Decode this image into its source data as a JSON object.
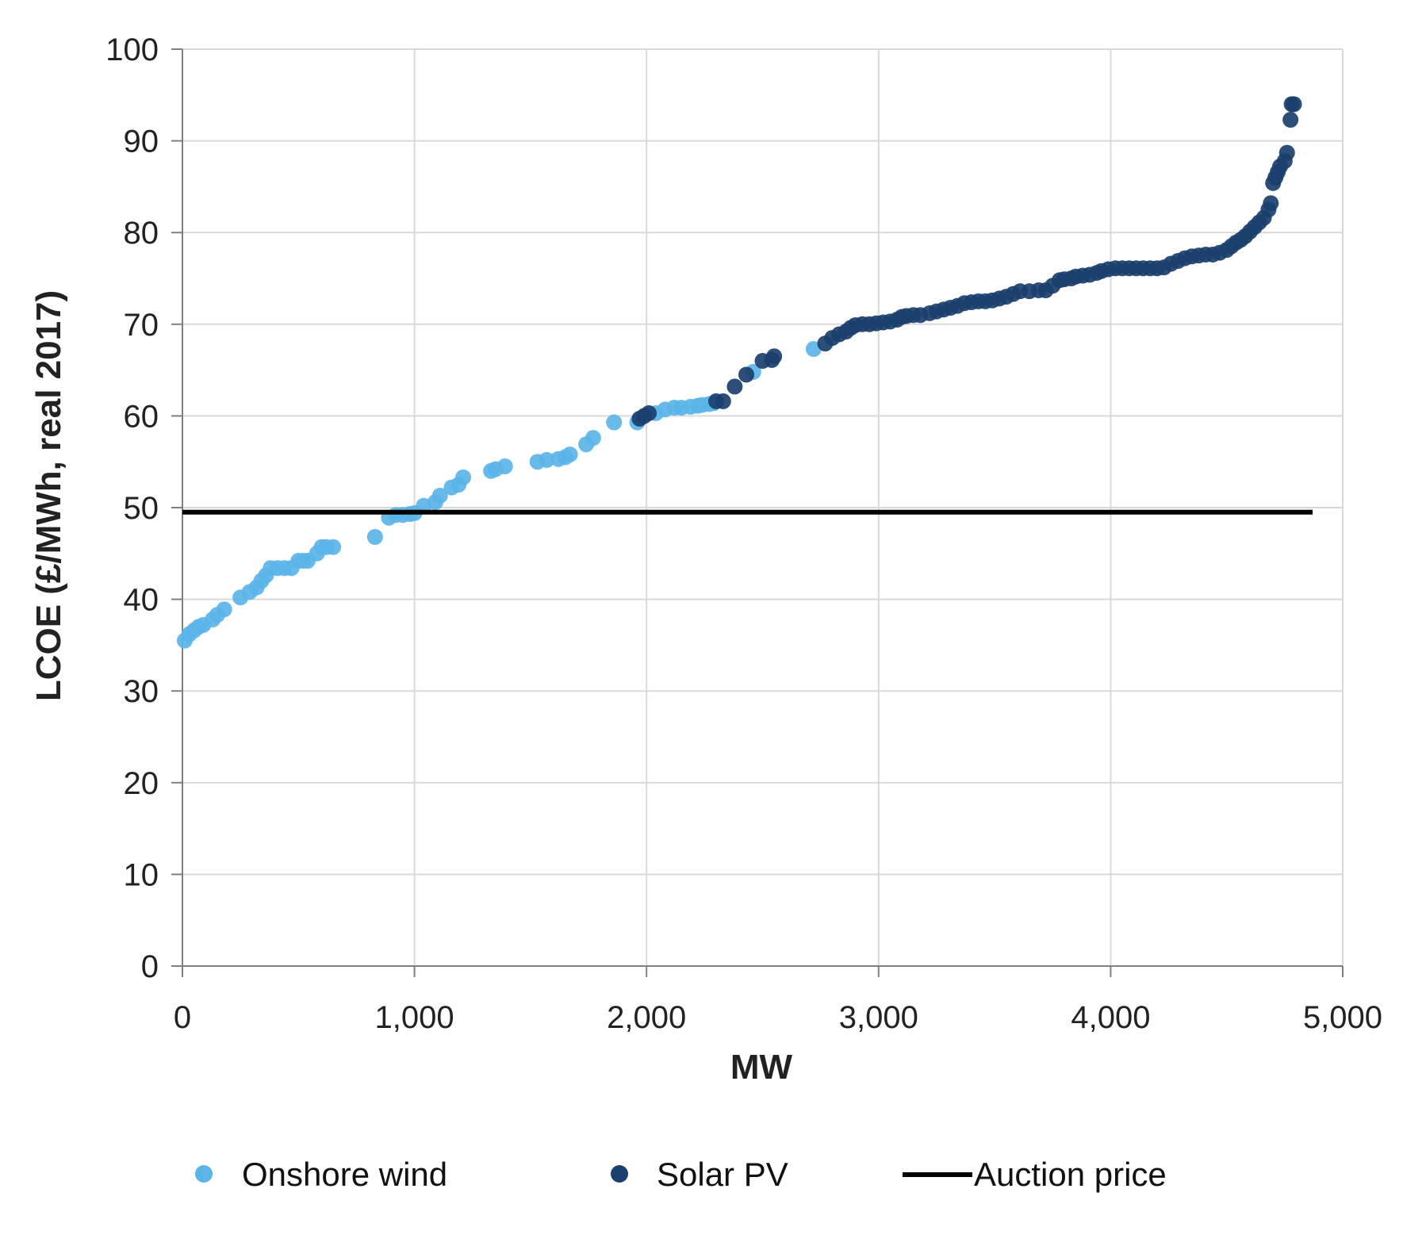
{
  "chart_data": {
    "type": "scatter",
    "title": "",
    "xlabel": "MW",
    "ylabel": "LCOE (£/MWh, real 2017)",
    "xlim": [
      0,
      5000
    ],
    "ylim": [
      0,
      100
    ],
    "xticks": [
      0,
      1000,
      2000,
      3000,
      4000,
      5000
    ],
    "xtick_labels": [
      "0",
      "1,000",
      "2,000",
      "3,000",
      "4,000",
      "5,000"
    ],
    "yticks": [
      0,
      10,
      20,
      30,
      40,
      50,
      60,
      70,
      80,
      90,
      100
    ],
    "ytick_labels": [
      "0",
      "10",
      "20",
      "30",
      "40",
      "50",
      "60",
      "70",
      "80",
      "90",
      "100"
    ],
    "grid": true,
    "legend_position": "bottom",
    "series": [
      {
        "name": "Onshore wind",
        "kind": "scatter",
        "color": "#5BB4E8",
        "points": [
          [
            10,
            35.5
          ],
          [
            30,
            36.2
          ],
          [
            50,
            36.6
          ],
          [
            70,
            37.0
          ],
          [
            90,
            37.2
          ],
          [
            130,
            37.8
          ],
          [
            150,
            38.3
          ],
          [
            180,
            38.9
          ],
          [
            250,
            40.2
          ],
          [
            290,
            40.8
          ],
          [
            320,
            41.3
          ],
          [
            340,
            42.0
          ],
          [
            360,
            42.6
          ],
          [
            380,
            43.4
          ],
          [
            410,
            43.4
          ],
          [
            440,
            43.4
          ],
          [
            470,
            43.4
          ],
          [
            500,
            44.2
          ],
          [
            520,
            44.2
          ],
          [
            540,
            44.2
          ],
          [
            580,
            45.0
          ],
          [
            600,
            45.7
          ],
          [
            620,
            45.7
          ],
          [
            650,
            45.7
          ],
          [
            830,
            46.8
          ],
          [
            890,
            48.9
          ],
          [
            920,
            49.2
          ],
          [
            950,
            49.2
          ],
          [
            980,
            49.3
          ],
          [
            1000,
            49.4
          ],
          [
            1040,
            50.2
          ],
          [
            1090,
            50.6
          ],
          [
            1110,
            51.3
          ],
          [
            1160,
            52.2
          ],
          [
            1190,
            52.5
          ],
          [
            1210,
            53.3
          ],
          [
            1330,
            54.0
          ],
          [
            1350,
            54.2
          ],
          [
            1390,
            54.5
          ],
          [
            1530,
            55.0
          ],
          [
            1570,
            55.2
          ],
          [
            1620,
            55.3
          ],
          [
            1650,
            55.5
          ],
          [
            1670,
            55.8
          ],
          [
            1740,
            56.9
          ],
          [
            1770,
            57.6
          ],
          [
            1860,
            59.3
          ],
          [
            1960,
            59.3
          ],
          [
            2040,
            60.3
          ],
          [
            2080,
            60.7
          ],
          [
            2120,
            60.9
          ],
          [
            2150,
            60.9
          ],
          [
            2190,
            61.0
          ],
          [
            2220,
            61.1
          ],
          [
            2240,
            61.2
          ],
          [
            2270,
            61.3
          ],
          [
            2290,
            61.4
          ],
          [
            2460,
            64.8
          ],
          [
            2720,
            67.3
          ]
        ]
      },
      {
        "name": "Solar PV",
        "kind": "scatter",
        "color": "#1B3F6E",
        "points": [
          [
            1970,
            59.7
          ],
          [
            1990,
            60.0
          ],
          [
            2010,
            60.3
          ],
          [
            2300,
            61.6
          ],
          [
            2330,
            61.6
          ],
          [
            2380,
            63.2
          ],
          [
            2430,
            64.5
          ],
          [
            2500,
            66.0
          ],
          [
            2540,
            66.1
          ],
          [
            2550,
            66.5
          ],
          [
            2770,
            67.9
          ],
          [
            2800,
            68.5
          ],
          [
            2830,
            68.9
          ],
          [
            2860,
            69.2
          ],
          [
            2880,
            69.6
          ],
          [
            2900,
            69.9
          ],
          [
            2930,
            70.0
          ],
          [
            2960,
            70.0
          ],
          [
            2990,
            70.1
          ],
          [
            3020,
            70.2
          ],
          [
            3050,
            70.3
          ],
          [
            3080,
            70.5
          ],
          [
            3100,
            70.8
          ],
          [
            3120,
            70.9
          ],
          [
            3150,
            71.0
          ],
          [
            3180,
            71.0
          ],
          [
            3220,
            71.2
          ],
          [
            3250,
            71.4
          ],
          [
            3280,
            71.6
          ],
          [
            3310,
            71.8
          ],
          [
            3340,
            72.0
          ],
          [
            3370,
            72.3
          ],
          [
            3400,
            72.4
          ],
          [
            3430,
            72.5
          ],
          [
            3460,
            72.5
          ],
          [
            3490,
            72.6
          ],
          [
            3520,
            72.8
          ],
          [
            3550,
            73.0
          ],
          [
            3580,
            73.3
          ],
          [
            3610,
            73.6
          ],
          [
            3650,
            73.6
          ],
          [
            3690,
            73.7
          ],
          [
            3720,
            73.7
          ],
          [
            3750,
            74.2
          ],
          [
            3780,
            74.8
          ],
          [
            3800,
            74.9
          ],
          [
            3830,
            75.0
          ],
          [
            3850,
            75.2
          ],
          [
            3880,
            75.3
          ],
          [
            3910,
            75.4
          ],
          [
            3940,
            75.6
          ],
          [
            3960,
            75.8
          ],
          [
            3990,
            76.0
          ],
          [
            4020,
            76.1
          ],
          [
            4050,
            76.1
          ],
          [
            4080,
            76.1
          ],
          [
            4110,
            76.1
          ],
          [
            4140,
            76.1
          ],
          [
            4170,
            76.1
          ],
          [
            4200,
            76.1
          ],
          [
            4230,
            76.2
          ],
          [
            4260,
            76.6
          ],
          [
            4290,
            76.9
          ],
          [
            4320,
            77.2
          ],
          [
            4350,
            77.4
          ],
          [
            4380,
            77.5
          ],
          [
            4410,
            77.6
          ],
          [
            4440,
            77.6
          ],
          [
            4470,
            77.8
          ],
          [
            4500,
            78.1
          ],
          [
            4520,
            78.5
          ],
          [
            4540,
            78.9
          ],
          [
            4560,
            79.2
          ],
          [
            4580,
            79.6
          ],
          [
            4600,
            80.1
          ],
          [
            4620,
            80.6
          ],
          [
            4640,
            81.1
          ],
          [
            4660,
            81.6
          ],
          [
            4680,
            82.5
          ],
          [
            4690,
            83.2
          ],
          [
            4700,
            85.4
          ],
          [
            4710,
            86.0
          ],
          [
            4720,
            86.6
          ],
          [
            4730,
            87.2
          ],
          [
            4750,
            87.8
          ],
          [
            4760,
            88.7
          ],
          [
            4775,
            92.3
          ],
          [
            4780,
            94.0
          ],
          [
            4790,
            94.0
          ]
        ]
      },
      {
        "name": "Auction price",
        "kind": "line",
        "color": "#000000",
        "points": [
          [
            0,
            49.5
          ],
          [
            4870,
            49.5
          ]
        ]
      }
    ]
  },
  "legend": {
    "items": [
      {
        "label": "Onshore wind",
        "marker": "dot",
        "color": "#5BB4E8"
      },
      {
        "label": "Solar PV",
        "marker": "dot",
        "color": "#1B3F6E"
      },
      {
        "label": "Auction price",
        "marker": "line",
        "color": "#000000"
      }
    ]
  },
  "colors": {
    "grid": "#D9D9D9",
    "axis": "#808080",
    "text": "#222222"
  }
}
